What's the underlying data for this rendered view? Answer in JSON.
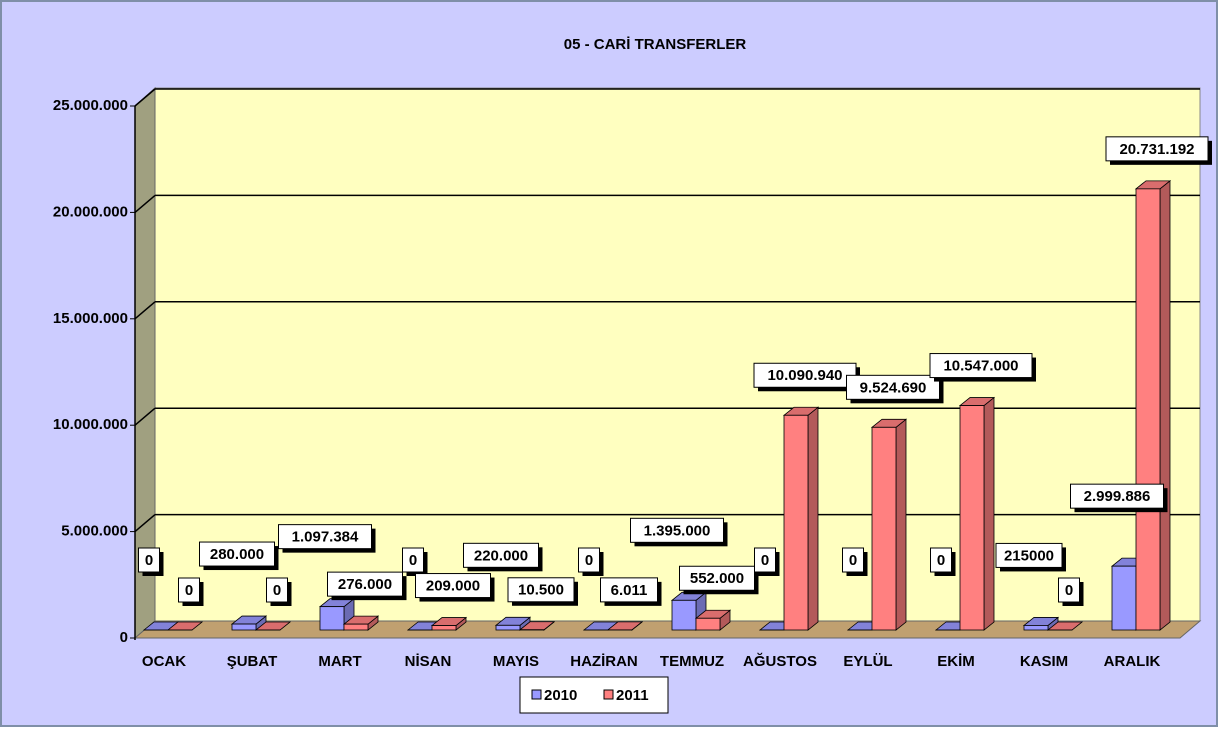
{
  "chart_data": {
    "type": "bar3d",
    "title": "05 - CARİ TRANSFERLER",
    "categories": [
      "OCAK",
      "ŞUBAT",
      "MART",
      "NİSAN",
      "MAYIS",
      "HAZİRAN",
      "TEMMUZ",
      "AĞUSTOS",
      "EYLÜL",
      "EKİM",
      "KASIM",
      "ARALIK"
    ],
    "series": [
      {
        "name": "2010",
        "color": "#9999ff",
        "values": [
          0,
          280000,
          1097384,
          0,
          220000,
          0,
          1395000,
          0,
          0,
          0,
          215000,
          2999886
        ],
        "value_labels": [
          "0",
          "280.000",
          "1.097.384",
          "0",
          "220.000",
          "0",
          "1.395.000",
          "0",
          "0",
          "0",
          "215000",
          "2.999.886"
        ]
      },
      {
        "name": "2011",
        "color": "#ff8080",
        "values": [
          0,
          0,
          276000,
          209000,
          10500,
          6011,
          552000,
          10090940,
          9524690,
          10547000,
          0,
          20731192
        ],
        "value_labels": [
          "0",
          "0",
          "276.000",
          "209.000",
          "10.500",
          "6.011",
          "552.000",
          "10.090.940",
          "9.524.690",
          "10.547.000",
          "0",
          "20.731.192"
        ]
      }
    ],
    "ylim": [
      0,
      25000000
    ],
    "yticks": [
      0,
      {
        "value": 5000000,
        "label": "5.000.000"
      },
      {
        "value": 10000000,
        "label": "10.000.000"
      },
      {
        "value": 15000000,
        "label": "15.000.000"
      },
      {
        "value": 20000000,
        "label": "20.000.000"
      },
      {
        "value": 25000000,
        "label": "25.000.000"
      }
    ],
    "grid": true,
    "legend": "bottom"
  }
}
